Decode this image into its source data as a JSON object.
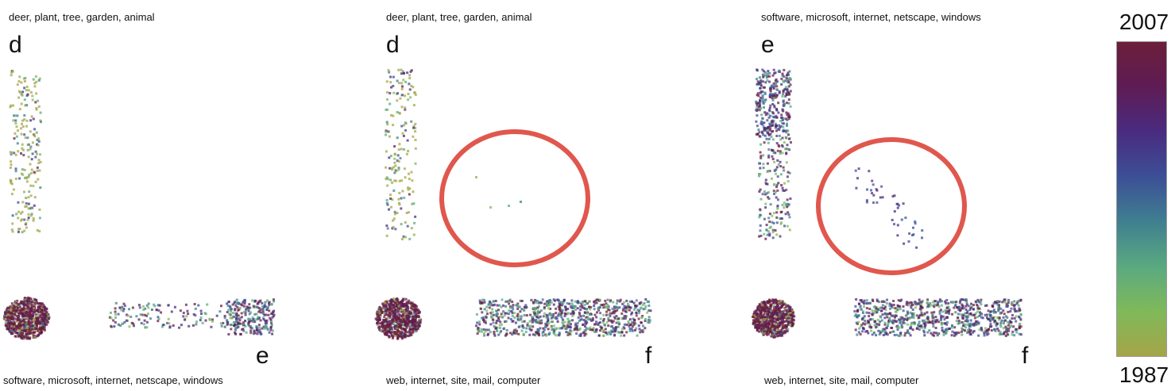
{
  "colors": {
    "colorbar_stops": [
      "#6b1f3a",
      "#5e1c55",
      "#4a2b7f",
      "#3c4f96",
      "#3f7f90",
      "#5aa980",
      "#7fb95a",
      "#a4a548"
    ],
    "circle": "#e0574d"
  },
  "colorbar": {
    "max_label": "2007",
    "min_label": "1987"
  },
  "chart_data": [
    {
      "type": "scatter",
      "top_topic": "deer, plant, tree, garden, animal",
      "bottom_topic": "software, microsoft, internet, netscape, windows",
      "vertical_letter": "d",
      "horizontal_letter": "e",
      "highlight_circle": false
    },
    {
      "type": "scatter",
      "top_topic": "deer, plant, tree, garden, animal",
      "bottom_topic": "web, internet, site, mail, computer",
      "vertical_letter": "d",
      "horizontal_letter": "f",
      "highlight_circle": true
    },
    {
      "type": "scatter",
      "top_topic": "software, microsoft, internet, netscape, windows",
      "bottom_topic": "web, internet, site, mail, computer",
      "vertical_letter": "e",
      "horizontal_letter": "f",
      "highlight_circle": true
    }
  ]
}
